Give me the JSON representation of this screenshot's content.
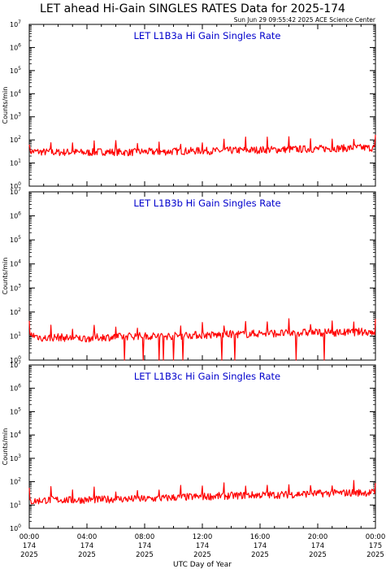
{
  "page_title": "LET ahead Hi-Gain SINGLES RATES Data for 2025-174",
  "timestamp": "Sun Jun 29 09:55:42 2025 ACE Science Center",
  "xlabel": "UTC Day of Year",
  "x_ticks": [
    {
      "time": "00:00",
      "day": "174",
      "year": "2025"
    },
    {
      "time": "04:00",
      "day": "174",
      "year": "2025"
    },
    {
      "time": "08:00",
      "day": "174",
      "year": "2025"
    },
    {
      "time": "12:00",
      "day": "174",
      "year": "2025"
    },
    {
      "time": "16:00",
      "day": "174",
      "year": "2025"
    },
    {
      "time": "20:00",
      "day": "174",
      "year": "2025"
    },
    {
      "time": "00:00",
      "day": "175",
      "year": "2025"
    }
  ],
  "colors": {
    "series": "#ff0000",
    "panel_title": "#0000cc",
    "axes": "#000000"
  },
  "chart_data": [
    {
      "type": "line",
      "title": "LET L1B3a Hi Gain Singles Rate",
      "ylabel": "Counts/min",
      "yscale": "log",
      "ylim": [
        1,
        10000000
      ],
      "y_tick_exponents": [
        "0",
        "1",
        "2",
        "3",
        "4",
        "5",
        "6",
        "7"
      ],
      "xlim_hours": [
        0,
        24
      ],
      "series": [
        {
          "x_hours": [
            0,
            1,
            2,
            3,
            4,
            5,
            6,
            7,
            8,
            9,
            10,
            11,
            12,
            13,
            14,
            15,
            16,
            17,
            18,
            19,
            20,
            21,
            22,
            23,
            24
          ],
          "values": [
            32,
            30,
            29,
            30,
            28,
            31,
            30,
            29,
            31,
            30,
            32,
            33,
            34,
            33,
            35,
            36,
            37,
            38,
            39,
            40,
            41,
            43,
            44,
            46,
            45
          ]
        }
      ]
    },
    {
      "type": "line",
      "title": "LET L1B3b Hi Gain Singles Rate",
      "ylabel": "Counts/min",
      "yscale": "log",
      "ylim": [
        1,
        10000000
      ],
      "y_tick_exponents": [
        "0",
        "1",
        "2",
        "3",
        "4",
        "5",
        "6",
        "7"
      ],
      "xlim_hours": [
        0,
        24
      ],
      "series": [
        {
          "x_hours": [
            0,
            1,
            2,
            3,
            4,
            5,
            6,
            7,
            8,
            9,
            10,
            11,
            12,
            13,
            14,
            15,
            16,
            17,
            18,
            19,
            20,
            21,
            22,
            23,
            24
          ],
          "values": [
            12,
            8,
            9,
            8,
            8,
            9,
            9,
            10,
            10,
            10,
            10,
            11,
            11,
            11,
            12,
            12,
            13,
            13,
            13,
            14,
            14,
            14,
            14,
            15,
            15
          ]
        }
      ]
    },
    {
      "type": "line",
      "title": "LET L1B3c Hi Gain Singles Rate",
      "ylabel": "Counts/min",
      "yscale": "log",
      "ylim": [
        1,
        10000000
      ],
      "y_tick_exponents": [
        "0",
        "1",
        "2",
        "3",
        "4",
        "5",
        "6",
        "7"
      ],
      "xlim_hours": [
        0,
        24
      ],
      "series": [
        {
          "x_hours": [
            0,
            1,
            2,
            3,
            4,
            5,
            6,
            7,
            8,
            9,
            10,
            11,
            12,
            13,
            14,
            15,
            16,
            17,
            18,
            19,
            20,
            21,
            22,
            23,
            24
          ],
          "values": [
            14,
            16,
            17,
            16,
            17,
            17,
            18,
            18,
            18,
            19,
            21,
            22,
            23,
            24,
            25,
            26,
            27,
            27,
            28,
            30,
            31,
            32,
            33,
            34,
            34
          ]
        }
      ]
    }
  ]
}
